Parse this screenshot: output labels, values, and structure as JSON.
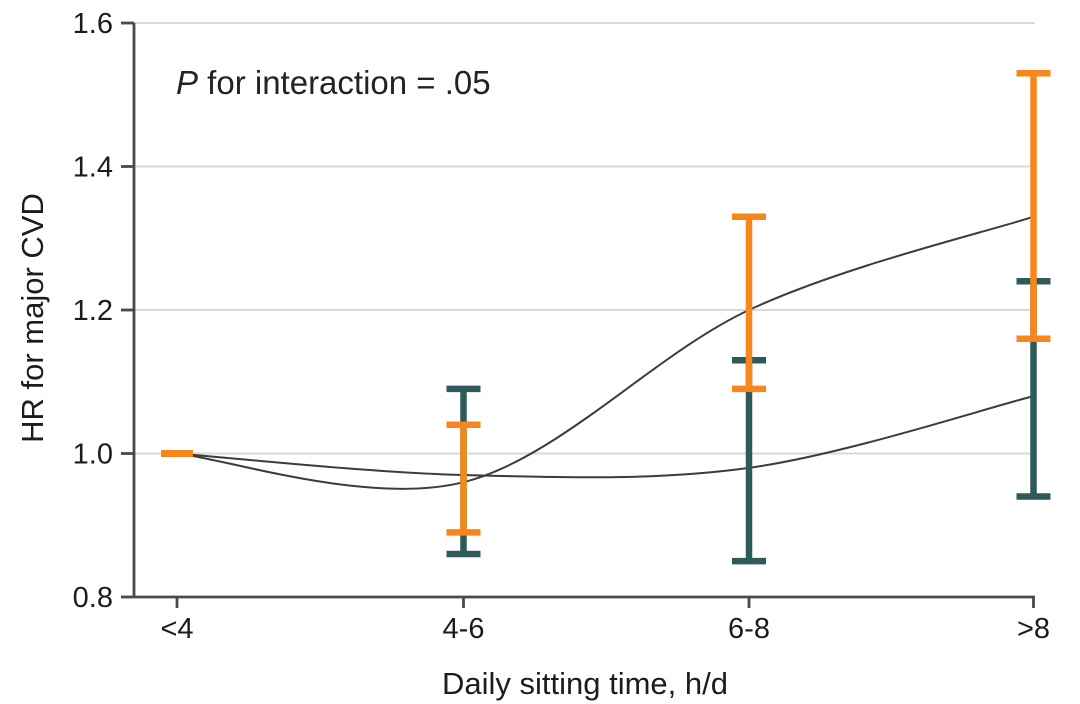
{
  "chart_data": {
    "type": "line",
    "title": "",
    "annotation": {
      "italic_part": "P",
      "text_part": " for interaction = .05"
    },
    "xlabel": "Daily sitting time, h/d",
    "ylabel": "HR for major CVD",
    "categories": [
      "<4",
      "4-6",
      "6-8",
      ">8"
    ],
    "ylim": [
      0.8,
      1.6
    ],
    "yticks": [
      0.8,
      1.0,
      1.2,
      1.4,
      1.6
    ],
    "ytick_labels": [
      "0.8",
      "1.0",
      "1.2",
      "1.4",
      "1.6"
    ],
    "grid": true,
    "legend": "none",
    "series": [
      {
        "name": "orange-series",
        "color": "#F6871D",
        "values": [
          1.0,
          0.96,
          1.2,
          1.33
        ],
        "ci_low": [
          null,
          0.89,
          1.09,
          1.16
        ],
        "ci_high": [
          null,
          1.04,
          1.33,
          1.53
        ]
      },
      {
        "name": "teal-series",
        "color": "#2F5A5C",
        "values": [
          1.0,
          0.97,
          0.98,
          1.08
        ],
        "ci_low": [
          null,
          0.86,
          0.85,
          0.94
        ],
        "ci_high": [
          null,
          1.09,
          1.13,
          1.24
        ]
      }
    ],
    "reference_dash": {
      "category": "<4",
      "value": 1.0,
      "color": "#F6871D"
    },
    "styles": {
      "line_color": "#3C3C3C",
      "grid_color": "#D9D9D9",
      "axis_color": "#4A4A4A",
      "text_color": "#1C1C1C"
    }
  }
}
